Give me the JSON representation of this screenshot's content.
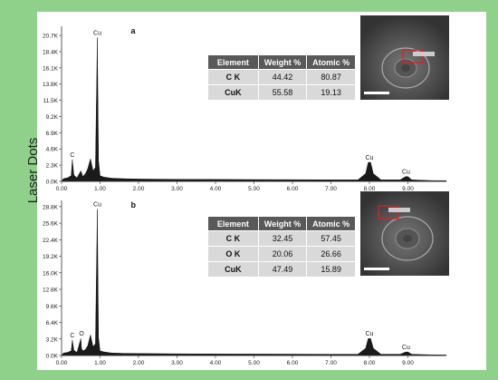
{
  "side_label": "Laser Dots",
  "colors": {
    "background": "#8fd18a",
    "spectrum_fill": "#1a1a1a",
    "table_header": "#595959",
    "table_cell": "#d9d9d9",
    "sem_highlight": "#e02020"
  },
  "panels": [
    {
      "letter": "a",
      "table": {
        "headers": [
          "Element",
          "Weight %",
          "Atomic %"
        ],
        "rows": [
          [
            "C K",
            "44.42",
            "80.87"
          ],
          [
            "CuK",
            "55.58",
            "19.13"
          ]
        ]
      }
    },
    {
      "letter": "b",
      "table": {
        "headers": [
          "Element",
          "Weight %",
          "Atomic %"
        ],
        "rows": [
          [
            "C K",
            "32.45",
            "57.45"
          ],
          [
            "O K",
            "20.06",
            "26.66"
          ],
          [
            "CuK",
            "47.49",
            "15.89"
          ]
        ]
      }
    }
  ],
  "chart_data": [
    {
      "type": "area",
      "title": "",
      "xlabel": "",
      "ylabel": "",
      "xlim": [
        0,
        10
      ],
      "ylim": [
        0,
        22000
      ],
      "x_ticks": [
        "0.00",
        "1.00",
        "2.00",
        "3.00",
        "4.00",
        "5.00",
        "6.00",
        "7.00",
        "8.00",
        "9.00"
      ],
      "y_ticks": [
        "0.0K",
        "2.3K",
        "4.6K",
        "6.9K",
        "9.2K",
        "11.5K",
        "13.8K",
        "16.1K",
        "18.4K",
        "20.7K"
      ],
      "y_tick_values": [
        0,
        2300,
        4600,
        6900,
        9200,
        11500,
        13800,
        16100,
        18400,
        20700
      ],
      "series": [
        {
          "x": [
            0.0,
            0.05,
            0.15,
            0.25,
            0.28,
            0.32,
            0.4,
            0.5,
            0.55,
            0.62,
            0.68,
            0.75,
            0.82,
            0.88,
            0.93,
            0.96,
            1.0,
            1.1,
            1.3,
            1.6,
            2.0,
            3.0,
            4.0,
            5.0,
            6.0,
            7.0,
            7.7,
            7.9,
            7.97,
            8.03,
            8.1,
            8.3,
            8.8,
            8.93,
            9.0,
            9.1,
            9.3,
            9.6,
            10.0
          ],
          "y": [
            0,
            400,
            500,
            800,
            3100,
            900,
            500,
            1500,
            700,
            1100,
            1800,
            3200,
            1500,
            2000,
            20400,
            3000,
            800,
            600,
            450,
            380,
            330,
            300,
            280,
            260,
            240,
            220,
            220,
            1100,
            2700,
            2700,
            1100,
            220,
            220,
            650,
            700,
            220,
            180,
            120,
            100
          ]
        }
      ],
      "annotations": [
        {
          "text": "C",
          "x": 0.28,
          "y": 3100
        },
        {
          "text": "Cu",
          "x": 0.93,
          "y": 20400
        },
        {
          "text": "Cu",
          "x": 8.0,
          "y": 2700
        },
        {
          "text": "Cu",
          "x": 8.95,
          "y": 700
        }
      ]
    },
    {
      "type": "area",
      "title": "",
      "xlabel": "",
      "ylabel": "",
      "xlim": [
        0,
        10
      ],
      "ylim": [
        0,
        30000
      ],
      "x_ticks": [
        "0.00",
        "1.00",
        "2.00",
        "3.00",
        "4.00",
        "5.00",
        "6.00",
        "7.00",
        "8.00",
        "9.00"
      ],
      "y_ticks": [
        "0.0K",
        "3.2K",
        "6.4K",
        "9.6K",
        "12.8K",
        "16.0K",
        "19.2K",
        "22.4K",
        "25.6K",
        "28.8K"
      ],
      "y_tick_values": [
        0,
        3200,
        6400,
        9600,
        12800,
        16000,
        19200,
        22400,
        25600,
        28800
      ],
      "series": [
        {
          "x": [
            0.0,
            0.05,
            0.15,
            0.25,
            0.28,
            0.32,
            0.4,
            0.5,
            0.52,
            0.56,
            0.62,
            0.68,
            0.75,
            0.82,
            0.88,
            0.93,
            0.96,
            1.0,
            1.1,
            1.3,
            1.6,
            2.0,
            3.0,
            4.0,
            5.0,
            6.0,
            7.0,
            7.7,
            7.9,
            7.97,
            8.03,
            8.1,
            8.3,
            8.8,
            8.93,
            9.0,
            9.1,
            9.3,
            9.6,
            10.0
          ],
          "y": [
            0,
            500,
            600,
            900,
            3000,
            1000,
            600,
            3300,
            1300,
            900,
            1200,
            1900,
            4000,
            1700,
            2300,
            28300,
            3500,
            900,
            700,
            500,
            420,
            380,
            340,
            300,
            280,
            260,
            240,
            240,
            1400,
            3300,
            3300,
            1400,
            240,
            240,
            650,
            700,
            240,
            200,
            140,
            100
          ]
        }
      ],
      "annotations": [
        {
          "text": "C",
          "x": 0.28,
          "y": 3000
        },
        {
          "text": "O",
          "x": 0.52,
          "y": 3300
        },
        {
          "text": "Cu",
          "x": 0.93,
          "y": 28300
        },
        {
          "text": "Cu",
          "x": 8.0,
          "y": 3300
        },
        {
          "text": "Cu",
          "x": 8.95,
          "y": 700
        }
      ]
    }
  ]
}
